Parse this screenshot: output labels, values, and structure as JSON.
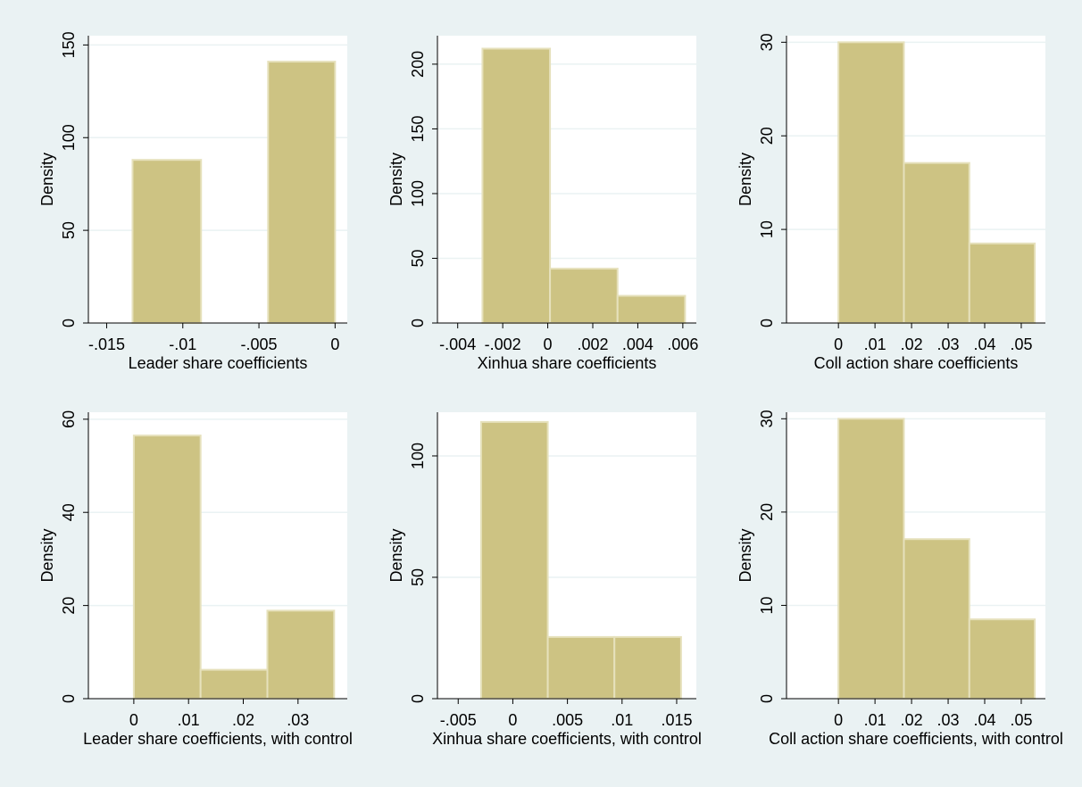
{
  "chart_data": [
    {
      "type": "bar",
      "panel": "leader-share",
      "xlabel": "Leader share coefficients",
      "ylabel": "Density",
      "bins": [
        {
          "x0": -0.0133,
          "x1": -0.0088,
          "density": 88
        },
        {
          "x0": -0.0088,
          "x1": -0.0044,
          "density": 0
        },
        {
          "x0": -0.0044,
          "x1": 0.0,
          "density": 141
        }
      ],
      "xlim": [
        -0.0162,
        0.0008
      ],
      "ylim": [
        0,
        155
      ],
      "xticks": [
        -0.015,
        -0.01,
        -0.005,
        0
      ],
      "xtick_labels": [
        "-.015",
        "-.01",
        "-.005",
        "0"
      ],
      "yticks": [
        0,
        50,
        100,
        150
      ],
      "ytick_labels": [
        "0",
        "50",
        "100",
        "150"
      ],
      "grid": true
    },
    {
      "type": "bar",
      "panel": "xinhua-share",
      "xlabel": "Xinhua share coefficients",
      "ylabel": "Density",
      "bins": [
        {
          "x0": -0.0029,
          "x1": 0.0001,
          "density": 212
        },
        {
          "x0": 0.0001,
          "x1": 0.0031,
          "density": 42
        },
        {
          "x0": 0.0031,
          "x1": 0.0061,
          "density": 21
        }
      ],
      "xlim": [
        -0.0049,
        0.0066
      ],
      "ylim": [
        0,
        222
      ],
      "xticks": [
        -0.004,
        -0.002,
        0,
        0.002,
        0.004,
        0.006
      ],
      "xtick_labels": [
        "-.004",
        "-.002",
        "0",
        ".002",
        ".004",
        ".006"
      ],
      "yticks": [
        0,
        50,
        100,
        150,
        200
      ],
      "ytick_labels": [
        "0",
        "50",
        "100",
        "150",
        "200"
      ],
      "grid": true
    },
    {
      "type": "bar",
      "panel": "coll-action-share",
      "xlabel": "Coll action share coefficients",
      "ylabel": "Density",
      "bins": [
        {
          "x0": 0.0,
          "x1": 0.0179,
          "density": 30
        },
        {
          "x0": 0.0179,
          "x1": 0.0358,
          "density": 17.1
        },
        {
          "x0": 0.0358,
          "x1": 0.0537,
          "density": 8.5
        }
      ],
      "xlim": [
        -0.0142,
        0.0566
      ],
      "ylim": [
        0,
        30.7
      ],
      "xticks": [
        0,
        0.01,
        0.02,
        0.03,
        0.04,
        0.05
      ],
      "xtick_labels": [
        "0",
        ".01",
        ".02",
        ".03",
        ".04",
        ".05"
      ],
      "yticks": [
        0,
        10,
        20,
        30
      ],
      "ytick_labels": [
        "0",
        "10",
        "20",
        "30"
      ],
      "grid": true
    },
    {
      "type": "bar",
      "panel": "leader-share-control",
      "xlabel": "Leader share coefficients, with control",
      "ylabel": "Density",
      "bins": [
        {
          "x0": 0.0,
          "x1": 0.0122,
          "density": 56.5
        },
        {
          "x0": 0.0122,
          "x1": 0.0244,
          "density": 6.2
        },
        {
          "x0": 0.0244,
          "x1": 0.0366,
          "density": 18.9
        }
      ],
      "xlim": [
        -0.0083,
        0.039
      ],
      "ylim": [
        0,
        61.5
      ],
      "xticks": [
        0,
        0.01,
        0.02,
        0.03
      ],
      "xtick_labels": [
        "0",
        ".01",
        ".02",
        ".03"
      ],
      "yticks": [
        0,
        20,
        40,
        60
      ],
      "ytick_labels": [
        "0",
        "20",
        "40",
        "60"
      ],
      "grid": true
    },
    {
      "type": "bar",
      "panel": "xinhua-share-control",
      "xlabel": "Xinhua share coefficients, with control",
      "ylabel": "Density",
      "bins": [
        {
          "x0": -0.0029,
          "x1": 0.0032,
          "density": 114
        },
        {
          "x0": 0.0032,
          "x1": 0.0093,
          "density": 25.4
        },
        {
          "x0": 0.0093,
          "x1": 0.0154,
          "density": 25.4
        }
      ],
      "xlim": [
        -0.0069,
        0.0168
      ],
      "ylim": [
        0,
        118
      ],
      "xticks": [
        -0.005,
        0,
        0.005,
        0.01,
        0.015
      ],
      "xtick_labels": [
        "-.005",
        "0",
        ".005",
        ".01",
        ".015"
      ],
      "yticks": [
        0,
        50,
        100
      ],
      "ytick_labels": [
        "0",
        "50",
        "100"
      ],
      "grid": true
    },
    {
      "type": "bar",
      "panel": "coll-action-share-control",
      "xlabel": "Coll action share coefficients, with control",
      "ylabel": "Density",
      "bins": [
        {
          "x0": 0.0,
          "x1": 0.0179,
          "density": 30
        },
        {
          "x0": 0.0179,
          "x1": 0.0358,
          "density": 17.1
        },
        {
          "x0": 0.0358,
          "x1": 0.0537,
          "density": 8.5
        }
      ],
      "xlim": [
        -0.0142,
        0.0566
      ],
      "ylim": [
        0,
        30.7
      ],
      "xticks": [
        0,
        0.01,
        0.02,
        0.03,
        0.04,
        0.05
      ],
      "xtick_labels": [
        "0",
        ".01",
        ".02",
        ".03",
        ".04",
        ".05"
      ],
      "yticks": [
        0,
        10,
        20,
        30
      ],
      "ytick_labels": [
        "0",
        "10",
        "20",
        "30"
      ],
      "grid": true
    }
  ],
  "colors": {
    "background": "#eaf2f3",
    "plot_background": "#ffffff",
    "bar_fill": "#cdc383",
    "bar_outline": "#e6e1bc",
    "gridline": "#eaf2f3"
  }
}
